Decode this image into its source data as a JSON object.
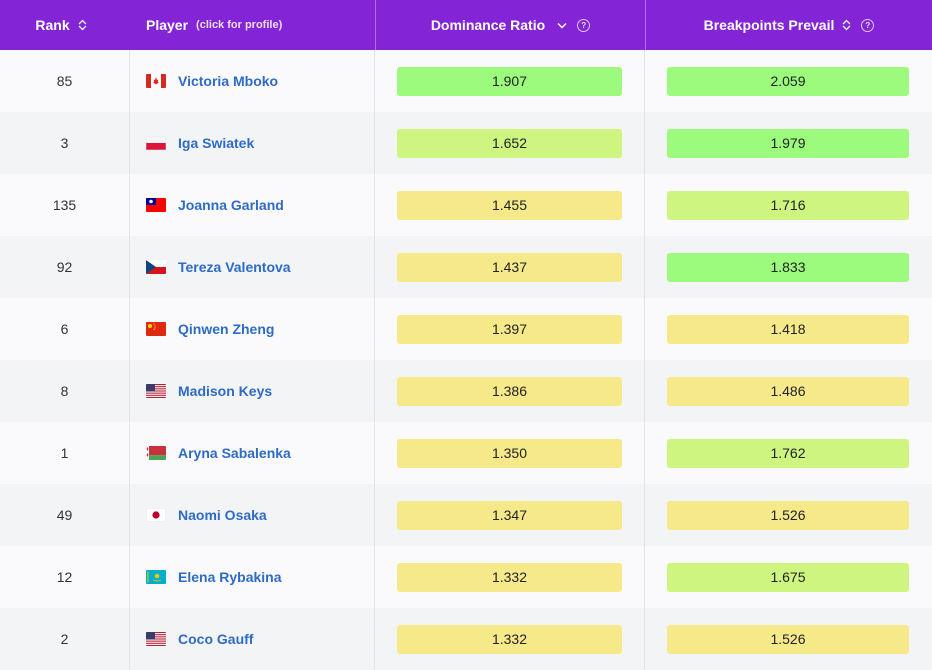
{
  "header": {
    "rank": "Rank",
    "player": "Player",
    "player_sub": "(click for profile)",
    "dominance": "Dominance Ratio",
    "breakpoints": "Breakpoints Prevail"
  },
  "colors": {
    "header_bg": "#8324d6",
    "green": "#9cfb7c",
    "lime": "#cdf57f",
    "yellow": "#f6e98a",
    "link": "#2e6bc6"
  },
  "rows": [
    {
      "rank": "85",
      "flag": "ca",
      "name": "Victoria Mboko",
      "dom": "1.907",
      "dom_color": "green",
      "bp": "2.059",
      "bp_color": "green"
    },
    {
      "rank": "3",
      "flag": "pl",
      "name": "Iga Swiatek",
      "dom": "1.652",
      "dom_color": "lime",
      "bp": "1.979",
      "bp_color": "green"
    },
    {
      "rank": "135",
      "flag": "tw",
      "name": "Joanna Garland",
      "dom": "1.455",
      "dom_color": "yellow",
      "bp": "1.716",
      "bp_color": "lime"
    },
    {
      "rank": "92",
      "flag": "cz",
      "name": "Tereza Valentova",
      "dom": "1.437",
      "dom_color": "yellow",
      "bp": "1.833",
      "bp_color": "green"
    },
    {
      "rank": "6",
      "flag": "cn",
      "name": "Qinwen Zheng",
      "dom": "1.397",
      "dom_color": "yellow",
      "bp": "1.418",
      "bp_color": "yellow"
    },
    {
      "rank": "8",
      "flag": "us",
      "name": "Madison Keys",
      "dom": "1.386",
      "dom_color": "yellow",
      "bp": "1.486",
      "bp_color": "yellow"
    },
    {
      "rank": "1",
      "flag": "by",
      "name": "Aryna Sabalenka",
      "dom": "1.350",
      "dom_color": "yellow",
      "bp": "1.762",
      "bp_color": "lime"
    },
    {
      "rank": "49",
      "flag": "jp",
      "name": "Naomi Osaka",
      "dom": "1.347",
      "dom_color": "yellow",
      "bp": "1.526",
      "bp_color": "yellow"
    },
    {
      "rank": "12",
      "flag": "kz",
      "name": "Elena Rybakina",
      "dom": "1.332",
      "dom_color": "yellow",
      "bp": "1.675",
      "bp_color": "lime"
    },
    {
      "rank": "2",
      "flag": "us",
      "name": "Coco Gauff",
      "dom": "1.332",
      "dom_color": "yellow",
      "bp": "1.526",
      "bp_color": "yellow"
    }
  ]
}
